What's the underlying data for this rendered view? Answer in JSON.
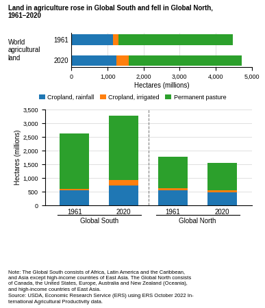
{
  "chart_data": [
    {
      "type": "bar",
      "orientation": "horizontal",
      "stacked": true,
      "title": "Land in agriculture rose in Global South and fell in Global North,\n1961–2020",
      "categories": [
        "1961",
        "2020"
      ],
      "series": [
        {
          "name": "Cropland, rainfall",
          "values": [
            1150,
            1250
          ]
        },
        {
          "name": "Cropland, irrigated",
          "values": [
            150,
            340
          ]
        },
        {
          "name": "Permanent pasture",
          "values": [
            3180,
            3140
          ]
        }
      ],
      "xlabel": "Hectares (millions)",
      "ylabel": "World\nagricultural\nland",
      "xlim": [
        0,
        5000
      ],
      "xticks": [
        0,
        {
          "value": 1000,
          "label": "1,000"
        },
        {
          "value": 2000,
          "label": "2,000"
        },
        {
          "value": 3000,
          "label": "3,000"
        },
        {
          "value": 4000,
          "label": "4,000"
        },
        {
          "value": 5000,
          "label": "5,000"
        }
      ],
      "grid": true,
      "legend": "upper center"
    },
    {
      "type": "bar",
      "stacked": true,
      "categories": [
        "1961",
        "2020",
        "1961",
        "2020"
      ],
      "groups": [
        "Global South",
        "Global North"
      ],
      "series": [
        {
          "name": "Cropland, rainfall",
          "values": [
            550,
            720,
            555,
            480
          ]
        },
        {
          "name": "Cropland, irrigated",
          "values": [
            60,
            200,
            75,
            80
          ]
        },
        {
          "name": "Permanent pasture",
          "values": [
            2010,
            2370,
            1140,
            995
          ]
        }
      ],
      "ylabel": "Hectares (millions)",
      "ylim": [
        0,
        3500
      ],
      "yticks": [
        0,
        500,
        {
          "value": 1000,
          "label": "1,000"
        },
        {
          "value": 1500,
          "label": "1,500"
        },
        {
          "value": 2000,
          "label": "2,000"
        },
        {
          "value": 2500,
          "label": "2,500"
        },
        {
          "value": 3000,
          "label": "3,000"
        },
        {
          "value": 3500,
          "label": "3,500"
        }
      ],
      "grid": true,
      "note": "Note: The Global South consists of Africa, Latin America and the Caribbean,\nand Asia except high-income countries of East Asia. The Global North consists\nof Canada, the United States, Europe, Australia and New Zealand (Oceania),\nand high-income countries of East Asia.\nSource: USDA, Economic Research Service (ERS) using ERS October 2022 In-\nternational Agricultural Productivity data."
    }
  ]
}
